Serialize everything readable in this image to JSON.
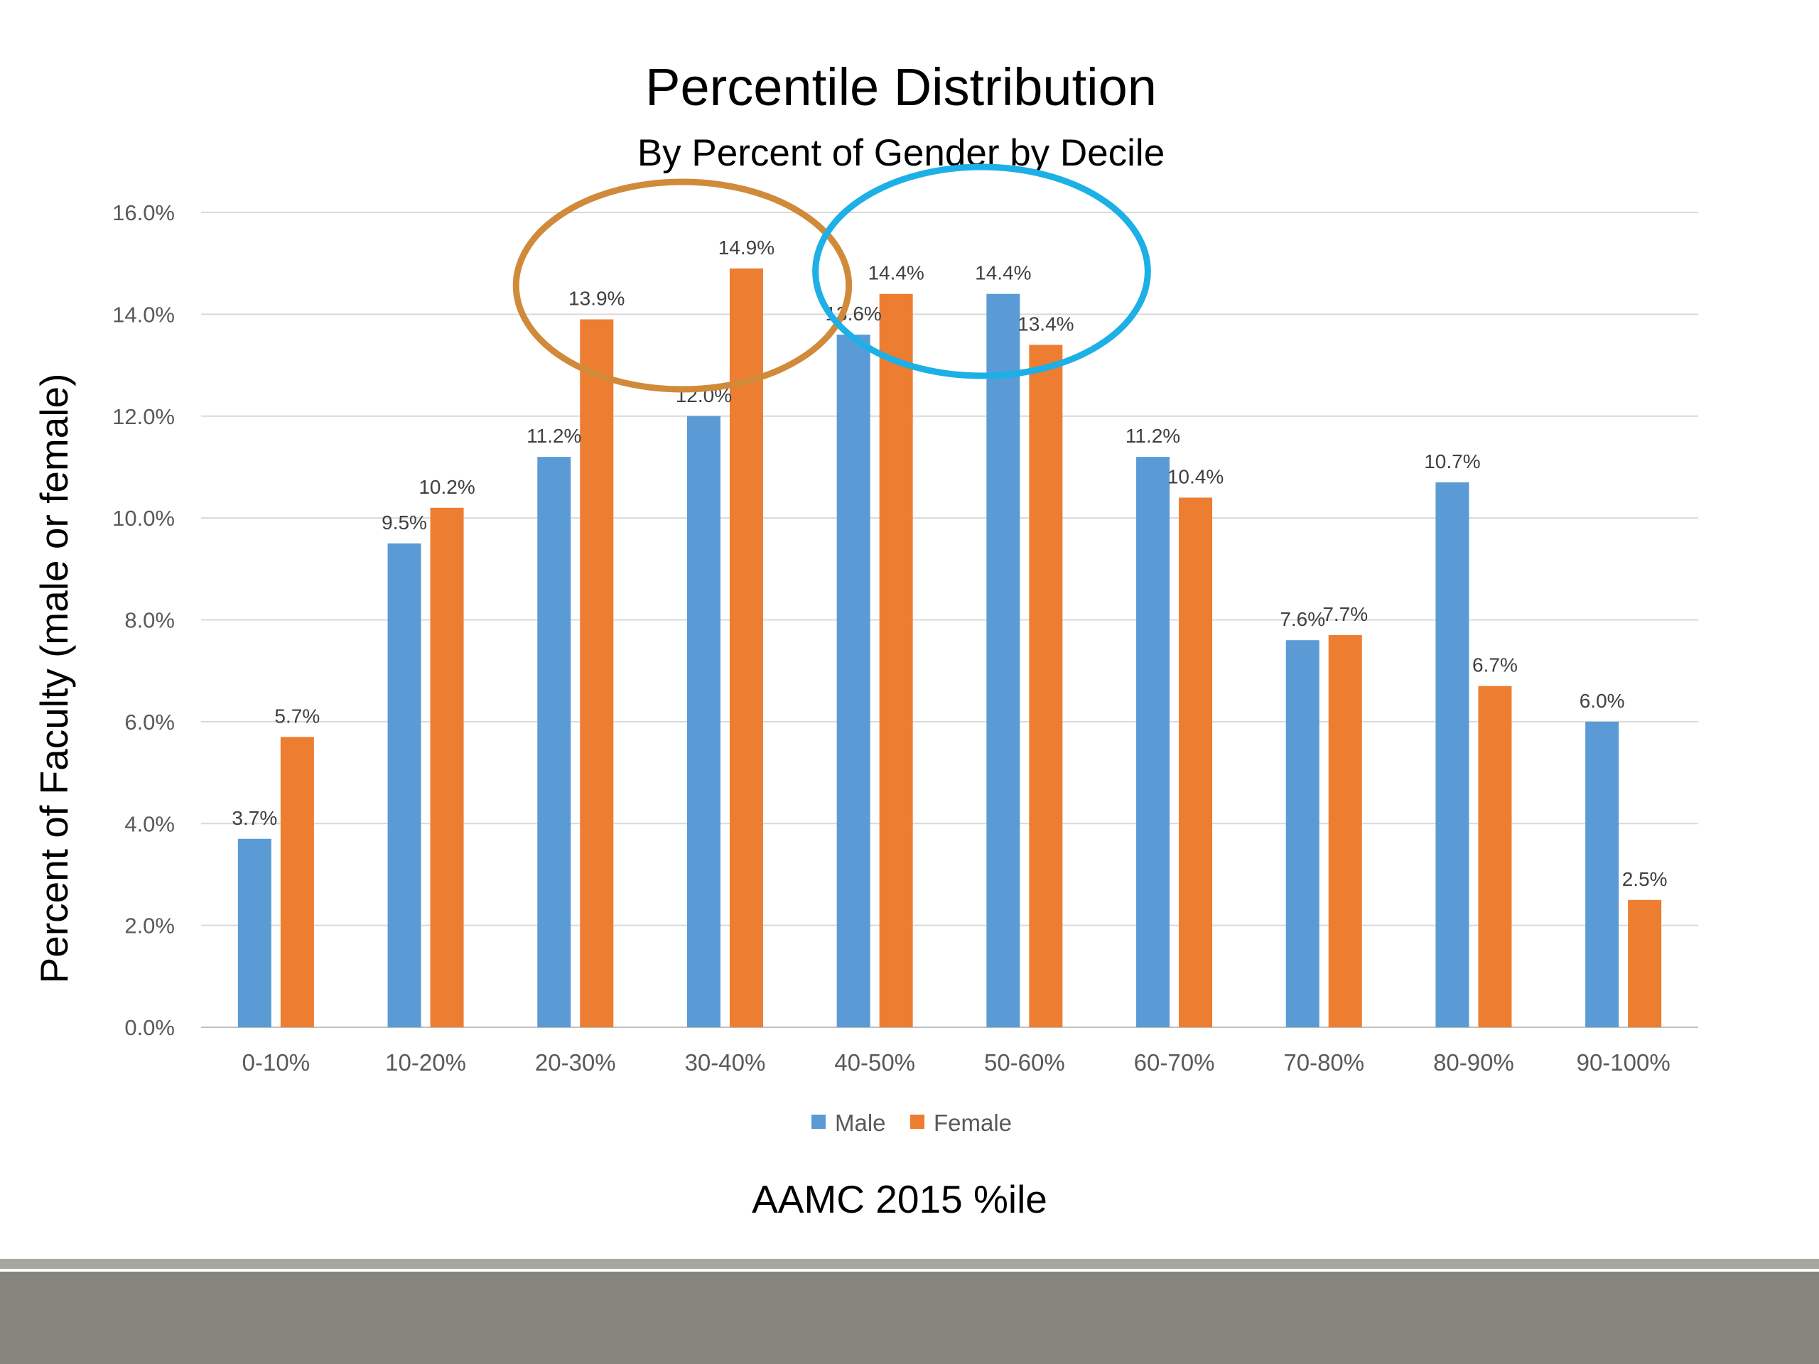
{
  "chart_data": {
    "type": "bar",
    "title": "Percentile Distribution",
    "subtitle": "By Percent of Gender by Decile",
    "xlabel": "AAMC 2015 %ile",
    "ylabel": "Percent of Faculty (male or female)",
    "ylim": [
      0,
      16
    ],
    "yticks": [
      "0.0%",
      "2.0%",
      "4.0%",
      "6.0%",
      "8.0%",
      "10.0%",
      "12.0%",
      "14.0%",
      "16.0%"
    ],
    "grid": true,
    "legend_position": "bottom",
    "categories": [
      "0-10%",
      "10-20%",
      "20-30%",
      "30-40%",
      "40-50%",
      "50-60%",
      "60-70%",
      "70-80%",
      "80-90%",
      "90-100%"
    ],
    "series": [
      {
        "name": "Male",
        "color": "#5b9bd5",
        "values": [
          3.7,
          9.5,
          11.2,
          12.0,
          13.6,
          14.4,
          11.2,
          7.6,
          10.7,
          6.0
        ],
        "labels": [
          "3.7%",
          "9.5%",
          "11.2%",
          "12.0%",
          "13.6%",
          "14.4%",
          "11.2%",
          "7.6%",
          "10.7%",
          "6.0%"
        ]
      },
      {
        "name": "Female",
        "color": "#ed7d31",
        "values": [
          5.7,
          10.2,
          13.9,
          14.9,
          14.4,
          13.4,
          10.4,
          7.7,
          6.7,
          2.5
        ],
        "labels": [
          "5.7%",
          "10.2%",
          "13.9%",
          "14.9%",
          "14.4%",
          "13.4%",
          "10.4%",
          "7.7%",
          "6.7%",
          "2.5%"
        ]
      }
    ],
    "annotations": [
      {
        "shape": "ellipse",
        "color": "#d08a3a",
        "encloses": [
          "20-30%",
          "30-40%",
          "40-50%"
        ]
      },
      {
        "shape": "ellipse",
        "color": "#1cb0e6",
        "encloses": [
          "40-50%",
          "50-60%"
        ]
      }
    ]
  },
  "footer": {
    "band_color": "#85857d"
  }
}
